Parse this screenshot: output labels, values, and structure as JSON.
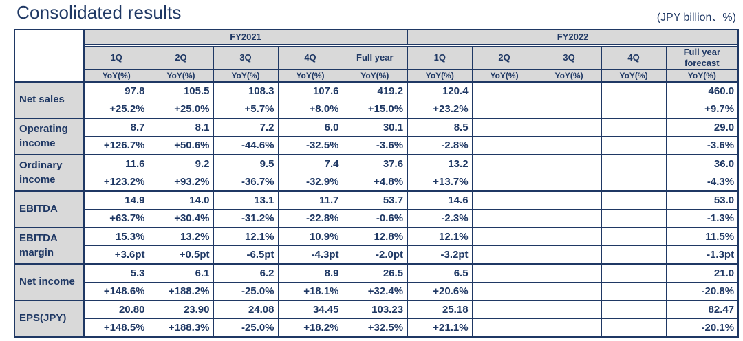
{
  "page": {
    "title": "Consolidated results",
    "unit_note": "(JPY billion、%)"
  },
  "colors": {
    "navy": "#1f3864",
    "header_bg": "#d9d9d9",
    "body_bg": "#ffffff",
    "border": "#1f3864"
  },
  "table": {
    "col_groups": [
      {
        "label": "FY2021",
        "span": 5
      },
      {
        "label": "FY2022",
        "span": 5
      }
    ],
    "columns": [
      "1Q",
      "2Q",
      "3Q",
      "4Q",
      "Full year",
      "1Q",
      "2Q",
      "3Q",
      "4Q",
      "Full year forecast"
    ],
    "subheaders": [
      "YoY(%)",
      "YoY(%)",
      "YoY(%)",
      "YoY(%)",
      "YoY(%)",
      "YoY(%)",
      "YoY(%)",
      "YoY(%)",
      "YoY(%)",
      "YoY(%)"
    ],
    "rows": [
      {
        "label": "Net sales",
        "values": [
          "97.8",
          "105.5",
          "108.3",
          "107.6",
          "419.2",
          "120.4",
          "",
          "",
          "",
          "460.0"
        ],
        "yoy": [
          "+25.2%",
          "+25.0%",
          "+5.7%",
          "+8.0%",
          "+15.0%",
          "+23.2%",
          "",
          "",
          "",
          "+9.7%"
        ]
      },
      {
        "label": "Operating income",
        "values": [
          "8.7",
          "8.1",
          "7.2",
          "6.0",
          "30.1",
          "8.5",
          "",
          "",
          "",
          "29.0"
        ],
        "yoy": [
          "+126.7%",
          "+50.6%",
          "-44.6%",
          "-32.5%",
          "-3.6%",
          "-2.8%",
          "",
          "",
          "",
          "-3.6%"
        ]
      },
      {
        "label": "Ordinary income",
        "values": [
          "11.6",
          "9.2",
          "9.5",
          "7.4",
          "37.6",
          "13.2",
          "",
          "",
          "",
          "36.0"
        ],
        "yoy": [
          "+123.2%",
          "+93.2%",
          "-36.7%",
          "-32.9%",
          "+4.8%",
          "+13.7%",
          "",
          "",
          "",
          "-4.3%"
        ]
      },
      {
        "label": "EBITDA",
        "values": [
          "14.9",
          "14.0",
          "13.1",
          "11.7",
          "53.7",
          "14.6",
          "",
          "",
          "",
          "53.0"
        ],
        "yoy": [
          "+63.7%",
          "+30.4%",
          "-31.2%",
          "-22.8%",
          "-0.6%",
          "-2.3%",
          "",
          "",
          "",
          "-1.3%"
        ]
      },
      {
        "label": "EBITDA margin",
        "values": [
          "15.3%",
          "13.2%",
          "12.1%",
          "10.9%",
          "12.8%",
          "12.1%",
          "",
          "",
          "",
          "11.5%"
        ],
        "yoy": [
          "+3.6pt",
          "+0.5pt",
          "-6.5pt",
          "-4.3pt",
          "-2.0pt",
          "-3.2pt",
          "",
          "",
          "",
          "-1.3pt"
        ]
      },
      {
        "label": "Net income",
        "values": [
          "5.3",
          "6.1",
          "6.2",
          "8.9",
          "26.5",
          "6.5",
          "",
          "",
          "",
          "21.0"
        ],
        "yoy": [
          "+148.6%",
          "+188.2%",
          "-25.0%",
          "+18.1%",
          "+32.4%",
          "+20.6%",
          "",
          "",
          "",
          "-20.8%"
        ]
      },
      {
        "label": "EPS(JPY)",
        "values": [
          "20.80",
          "23.90",
          "24.08",
          "34.45",
          "103.23",
          "25.18",
          "",
          "",
          "",
          "82.47"
        ],
        "yoy": [
          "+148.5%",
          "+188.3%",
          "-25.0%",
          "+18.2%",
          "+32.5%",
          "+21.1%",
          "",
          "",
          "",
          "-20.1%"
        ]
      }
    ]
  }
}
